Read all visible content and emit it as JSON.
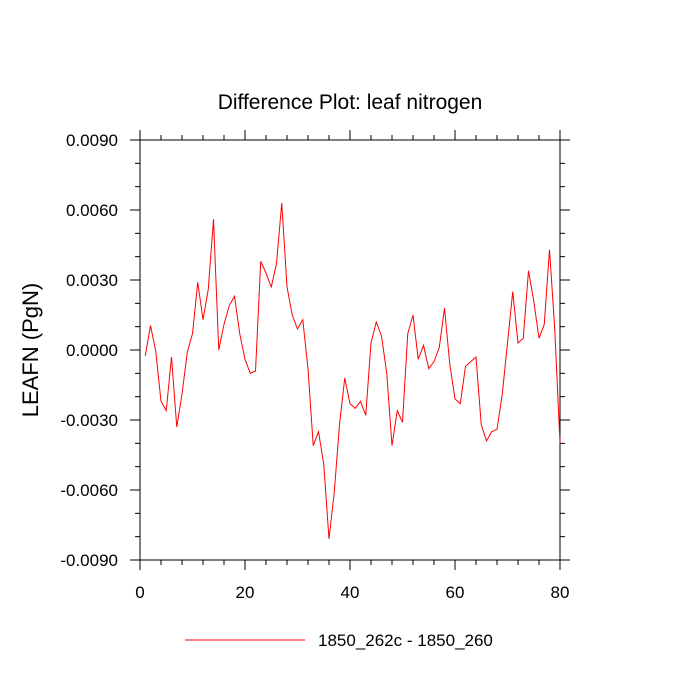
{
  "chart_data": {
    "type": "line",
    "title": "Difference Plot: leaf nitrogen",
    "xlabel": "",
    "ylabel": "LEAFN  (PgN)",
    "xlim": [
      0,
      80
    ],
    "ylim": [
      -0.009,
      0.009
    ],
    "x_ticks": [
      0,
      20,
      40,
      60,
      80
    ],
    "x_tick_labels": [
      "0",
      "20",
      "40",
      "60",
      "80"
    ],
    "y_ticks": [
      0.009,
      0.006,
      0.003,
      0.0,
      -0.003,
      -0.006,
      -0.009
    ],
    "y_tick_labels": [
      "0.0090",
      "0.0060",
      "0.0030",
      "0.0000",
      "-0.0030",
      "-0.0060",
      "-0.0090"
    ],
    "grid": false,
    "legend_position": "bottom",
    "series": [
      {
        "name": "1850_262c - 1850_260",
        "color": "#ff0000",
        "x": [
          1,
          2,
          3,
          4,
          5,
          6,
          7,
          8,
          9,
          10,
          11,
          12,
          13,
          14,
          15,
          16,
          17,
          18,
          19,
          20,
          21,
          22,
          23,
          24,
          25,
          26,
          27,
          28,
          29,
          30,
          31,
          32,
          33,
          34,
          35,
          36,
          37,
          38,
          39,
          40,
          41,
          42,
          43,
          44,
          45,
          46,
          47,
          48,
          49,
          50,
          51,
          52,
          53,
          54,
          55,
          56,
          57,
          58,
          59,
          60,
          61,
          62,
          63,
          64,
          65,
          66,
          67,
          68,
          69,
          70,
          71,
          72,
          73,
          74,
          75,
          76,
          77,
          78,
          79,
          80
        ],
        "y": [
          -0.00025,
          0.00105,
          -5e-05,
          -0.0022,
          -0.0026,
          -0.0003,
          -0.0033,
          -0.0019,
          -0.0001,
          0.0007,
          0.0029,
          0.0013,
          0.0026,
          0.0056,
          0.0,
          0.0011,
          0.0019,
          0.0023,
          0.0007,
          -0.0004,
          -0.001,
          -0.0009,
          0.0038,
          0.0033,
          0.0027,
          0.0037,
          0.0063,
          0.0027,
          0.0015,
          0.0009,
          0.0013,
          -0.0008,
          -0.0041,
          -0.0035,
          -0.0049,
          -0.0081,
          -0.0061,
          -0.0032,
          -0.0012,
          -0.0023,
          -0.0025,
          -0.0022,
          -0.0028,
          0.0003,
          0.0012,
          0.0006,
          -0.001,
          -0.0041,
          -0.0026,
          -0.0031,
          0.0007,
          0.0015,
          -0.0004,
          0.0002,
          -0.0008,
          -0.0005,
          0.0001,
          0.0018,
          -0.0006,
          -0.0021,
          -0.0023,
          -0.0007,
          -0.0005,
          -0.0003,
          -0.0032,
          -0.0039,
          -0.0035,
          -0.0034,
          -0.0019,
          0.0003,
          0.0025,
          0.0003,
          0.0005,
          0.0034,
          0.0021,
          0.0005,
          0.0011,
          0.0043,
          0.0009,
          -0.004
        ]
      }
    ]
  }
}
